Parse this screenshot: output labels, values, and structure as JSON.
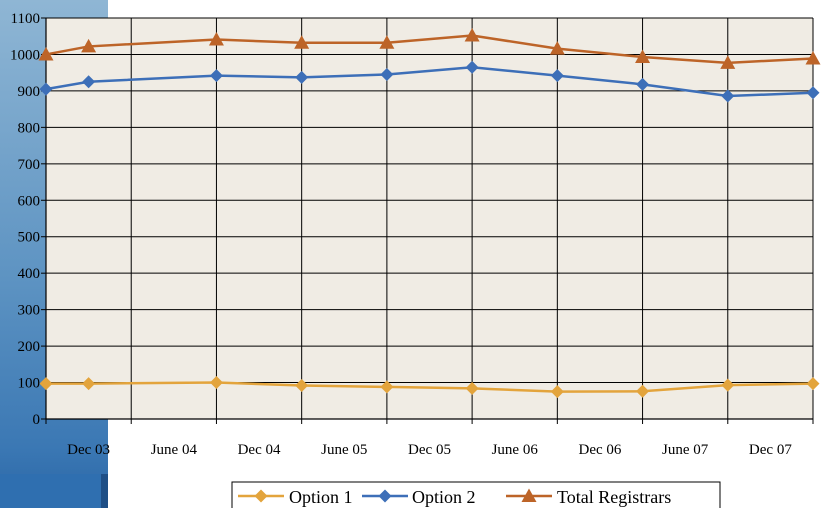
{
  "chart_data": {
    "type": "line",
    "title": "",
    "xlabel": "",
    "ylabel": "",
    "ylim": [
      0,
      1100
    ],
    "y_ticks": [
      0,
      100,
      200,
      300,
      400,
      500,
      600,
      700,
      800,
      900,
      1000,
      1100
    ],
    "x_tick_labels": [
      "Dec 03",
      "June 04",
      "Dec 04",
      "June 05",
      "Dec 05",
      "June 06",
      "Dec 06",
      "June 07",
      "Dec 07"
    ],
    "grid": true,
    "legend": "bottom",
    "colors": {
      "plot_bg": "#f0ece4",
      "grid": "#000000"
    },
    "series": [
      {
        "name": "Option 1",
        "color": "#e3a43c",
        "marker": "diamond",
        "x": [
          0,
          0.5,
          2,
          3,
          4,
          5,
          6,
          7,
          8,
          9
        ],
        "values": [
          97,
          97,
          100,
          92,
          88,
          84,
          75,
          76,
          93,
          97
        ]
      },
      {
        "name": "Option 2",
        "color": "#3d6fb8",
        "marker": "diamond",
        "x": [
          0,
          0.5,
          2,
          3,
          4,
          5,
          6,
          7,
          8,
          9
        ],
        "values": [
          905,
          925,
          942,
          937,
          945,
          965,
          942,
          918,
          886,
          895
        ]
      },
      {
        "name": "Total Registrars",
        "color": "#bd6428",
        "marker": "triangle",
        "x": [
          0,
          0.5,
          2,
          3,
          4,
          5,
          6,
          7,
          8,
          9
        ],
        "values": [
          1000,
          1022,
          1041,
          1032,
          1032,
          1052,
          1016,
          993,
          977,
          989
        ]
      }
    ]
  }
}
